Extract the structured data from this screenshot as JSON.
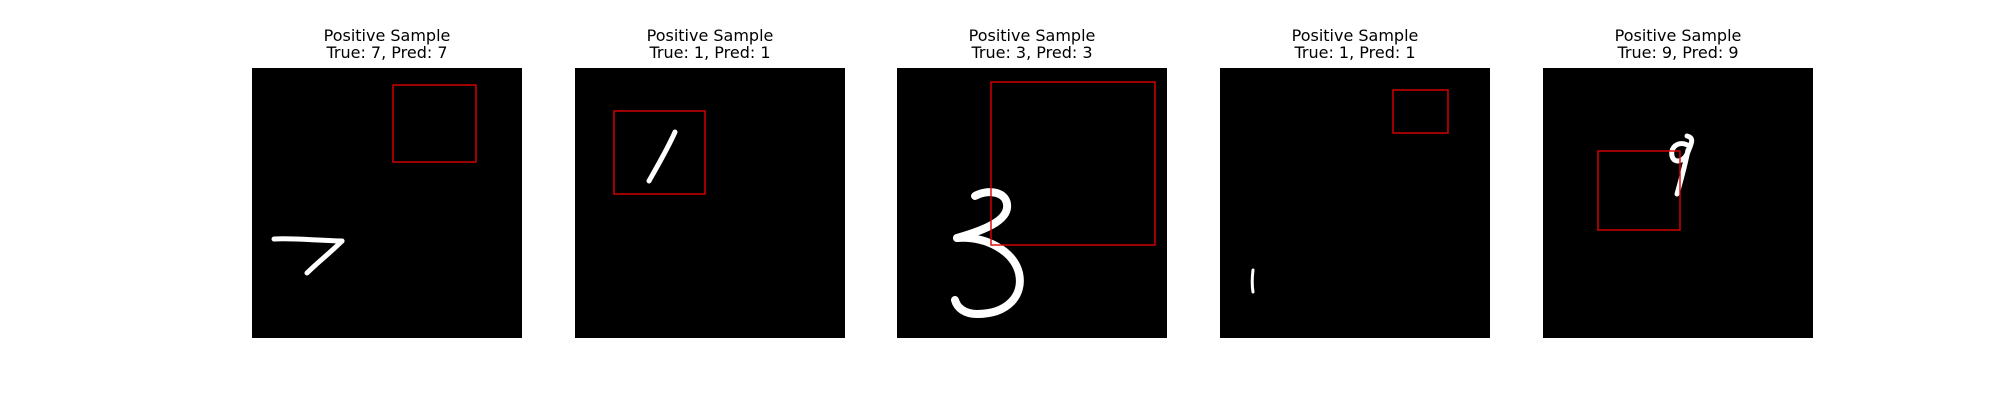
{
  "colors": {
    "background": "#ffffff",
    "image_background": "#000000",
    "digit_stroke": "#ffffff",
    "bounding_box": "#e00000",
    "title_text": "#000000"
  },
  "panels": [
    {
      "title": "Positive Sample",
      "subtitle": "True: 7, Pred: 7",
      "digit": "7"
    },
    {
      "title": "Positive Sample",
      "subtitle": "True: 1, Pred: 1",
      "digit": "1"
    },
    {
      "title": "Positive Sample",
      "subtitle": "True: 3, Pred: 3",
      "digit": "3"
    },
    {
      "title": "Positive Sample",
      "subtitle": "True: 1, Pred: 1",
      "digit": "1"
    },
    {
      "title": "Positive Sample",
      "subtitle": "True: 9, Pred: 9",
      "digit": "9"
    }
  ]
}
